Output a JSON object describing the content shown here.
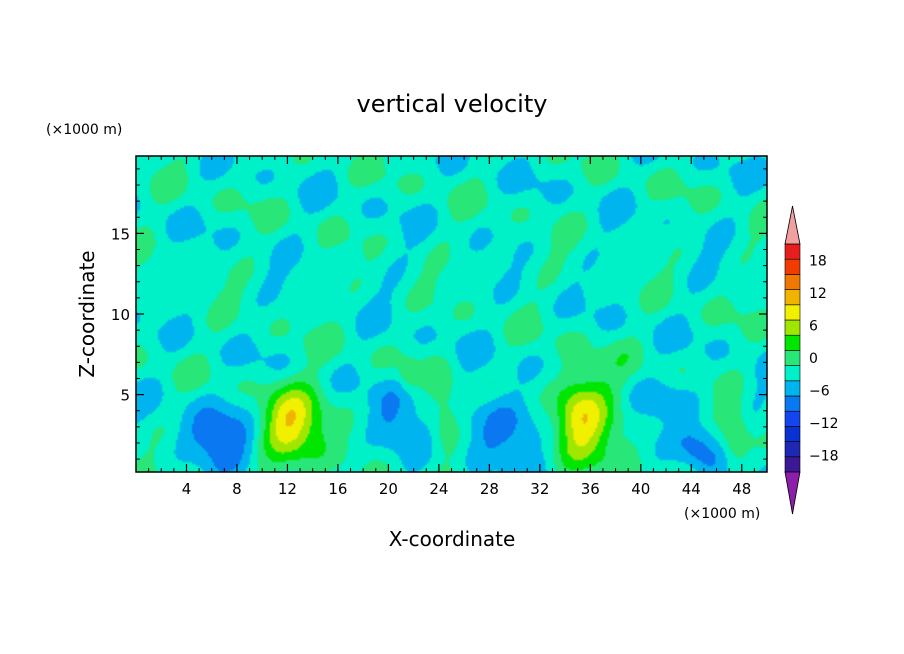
{
  "chart_data": {
    "type": "heatmap",
    "title": "vertical velocity",
    "xlabel": "X-coordinate",
    "ylabel": "Z-coordinate",
    "x_unit": "(×1000 m)",
    "y_unit": "(×1000 m)",
    "xlim": [
      0,
      50
    ],
    "ylim": [
      0.2,
      19.8
    ],
    "x_ticks": [
      4,
      8,
      12,
      16,
      20,
      24,
      28,
      32,
      36,
      40,
      44,
      48
    ],
    "y_ticks": [
      5,
      10,
      15
    ],
    "grid": false,
    "legend": "right",
    "colorbar": {
      "levels": [
        -21,
        -18,
        -15,
        -12,
        -9,
        -6,
        -3,
        0,
        3,
        6,
        9,
        12,
        15,
        18,
        21
      ],
      "colors": [
        "#3c1896",
        "#1e28b4",
        "#0a32d2",
        "#1446f0",
        "#0a78f0",
        "#00b4f0",
        "#00f0c8",
        "#28e678",
        "#00e600",
        "#a0e600",
        "#f0f000",
        "#f0b400",
        "#f07800",
        "#f03c00",
        "#e61e1e"
      ],
      "under_color": "#8c1eaa",
      "over_color": "#f0a0a0",
      "tick_labels": [
        "18",
        "12",
        "6",
        "0",
        "−6",
        "−12",
        "−18"
      ],
      "tick_values": [
        18,
        12,
        6,
        0,
        -6,
        -12,
        -18
      ]
    },
    "background_value": -1.5,
    "features": [
      {
        "kind": "updraft",
        "x": 12,
        "z": 3.2,
        "peak": 8,
        "sx": 1.6,
        "sz": 1.6
      },
      {
        "kind": "updraft",
        "x": 13.6,
        "z": 2.8,
        "peak": 4.5,
        "sx": 2.2,
        "sz": 2.2
      },
      {
        "kind": "updraft",
        "x": 35,
        "z": 4.0,
        "peak": 9,
        "sx": 1.4,
        "sz": 1.8
      },
      {
        "kind": "updraft",
        "x": 36.5,
        "z": 3.0,
        "peak": 4.5,
        "sx": 2.4,
        "sz": 2.2
      },
      {
        "kind": "updraft",
        "x": 24.5,
        "z": 3.6,
        "peak": 5.5,
        "sx": 0.9,
        "sz": 1.8
      },
      {
        "kind": "updraft",
        "x": 47.5,
        "z": 2.2,
        "peak": 5.5,
        "sx": 0.8,
        "sz": 1.6
      },
      {
        "kind": "updraft",
        "x": 21.6,
        "z": 6.2,
        "peak": 3.5,
        "sx": 0.5,
        "sz": 0.6
      },
      {
        "kind": "downdraft",
        "x": 6.5,
        "z": 2.4,
        "peak": -6.5,
        "sx": 2.0,
        "sz": 1.5
      },
      {
        "kind": "downdraft",
        "x": 29,
        "z": 3.0,
        "peak": -6.5,
        "sx": 2.0,
        "sz": 1.6
      },
      {
        "kind": "downdraft",
        "x": 20.5,
        "z": 3.2,
        "peak": -5.5,
        "sx": 1.4,
        "sz": 1.8
      },
      {
        "kind": "downdraft",
        "x": 44.5,
        "z": 1.8,
        "peak": -6.5,
        "sx": 1.2,
        "sz": 1.2
      },
      {
        "kind": "downdraft",
        "x": 41.5,
        "z": 4.6,
        "peak": -4.0,
        "sx": 1.8,
        "sz": 0.9
      }
    ]
  }
}
